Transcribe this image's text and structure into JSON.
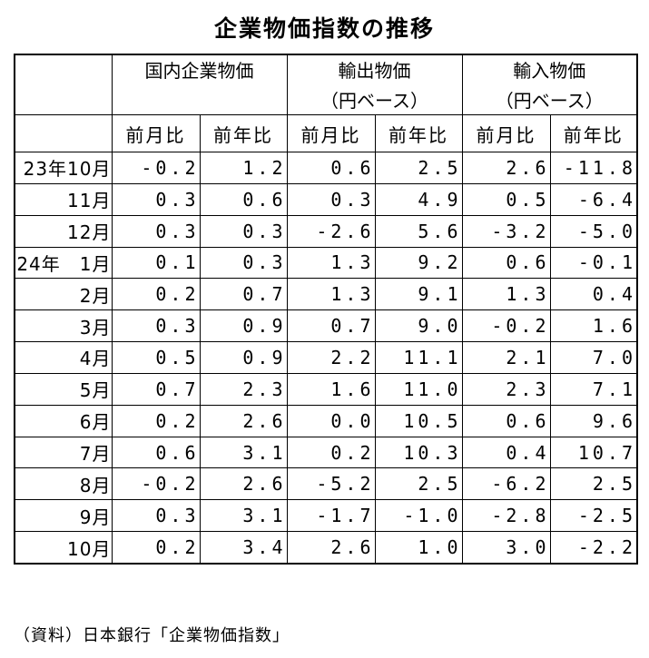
{
  "title": "企業物価指数の推移",
  "groups": [
    {
      "name": "国内企業物価",
      "sub": ""
    },
    {
      "name": "輸出物価",
      "sub": "（円ベース）"
    },
    {
      "name": "輸入物価",
      "sub": "（円ベース）"
    }
  ],
  "columns": [
    "前月比",
    "前年比",
    "前月比",
    "前年比",
    "前月比",
    "前年比"
  ],
  "rows": [
    {
      "label": "23年10月",
      "values": [
        "-0.2",
        "1.2",
        "0.6",
        "2.5",
        "2.6",
        "-11.8"
      ]
    },
    {
      "label": "11月",
      "values": [
        "0.3",
        "0.6",
        "0.3",
        "4.9",
        "0.5",
        "-6.4"
      ]
    },
    {
      "label": "12月",
      "values": [
        "0.3",
        "0.3",
        "-2.6",
        "5.6",
        "-3.2",
        "-5.0"
      ]
    },
    {
      "label": "24年　1月",
      "values": [
        "0.1",
        "0.3",
        "1.3",
        "9.2",
        "0.6",
        "-0.1"
      ]
    },
    {
      "label": "2月",
      "values": [
        "0.2",
        "0.7",
        "1.3",
        "9.1",
        "1.3",
        "0.4"
      ]
    },
    {
      "label": "3月",
      "values": [
        "0.3",
        "0.9",
        "0.7",
        "9.0",
        "-0.2",
        "1.6"
      ]
    },
    {
      "label": "4月",
      "values": [
        "0.5",
        "0.9",
        "2.2",
        "11.1",
        "2.1",
        "7.0"
      ]
    },
    {
      "label": "5月",
      "values": [
        "0.7",
        "2.3",
        "1.6",
        "11.0",
        "2.3",
        "7.1"
      ]
    },
    {
      "label": "6月",
      "values": [
        "0.2",
        "2.6",
        "0.0",
        "10.5",
        "0.6",
        "9.6"
      ]
    },
    {
      "label": "7月",
      "values": [
        "0.6",
        "3.1",
        "0.2",
        "10.3",
        "0.4",
        "10.7"
      ]
    },
    {
      "label": "8月",
      "values": [
        "-0.2",
        "2.6",
        "-5.2",
        "2.5",
        "-6.2",
        "2.5"
      ]
    },
    {
      "label": "9月",
      "values": [
        "0.3",
        "3.1",
        "-1.7",
        "-1.0",
        "-2.8",
        "-2.5"
      ]
    },
    {
      "label": "10月",
      "values": [
        "0.2",
        "3.4",
        "2.6",
        "1.0",
        "3.0",
        "-2.2"
      ]
    }
  ],
  "source": "（資料）日本銀行「企業物価指数」"
}
